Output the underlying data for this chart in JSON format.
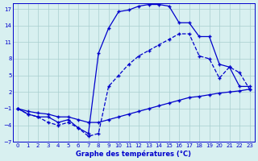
{
  "title": "Graphe des températures (°C)",
  "background_color": "#d8f0f0",
  "grid_color": "#a8cece",
  "line_color": "#0000cc",
  "xlim": [
    -0.5,
    23.5
  ],
  "ylim": [
    -7,
    18
  ],
  "yticks": [
    -7,
    -4,
    -1,
    2,
    5,
    8,
    11,
    14,
    17
  ],
  "xticks": [
    0,
    1,
    2,
    3,
    4,
    5,
    6,
    7,
    8,
    9,
    10,
    11,
    12,
    13,
    14,
    15,
    16,
    17,
    18,
    19,
    20,
    21,
    22,
    23
  ],
  "curve_top": {
    "x": [
      0,
      1,
      2,
      3,
      4,
      5,
      6,
      7,
      8,
      9,
      10,
      11,
      12,
      13,
      14,
      15,
      16,
      17,
      18,
      19,
      20,
      21,
      22,
      23
    ],
    "y": [
      -1.0,
      -2.0,
      -2.5,
      -2.5,
      -3.5,
      -3.0,
      -4.5,
      -5.5,
      9.0,
      13.5,
      16.5,
      16.8,
      17.5,
      17.8,
      17.8,
      17.5,
      14.5,
      14.5,
      12.0,
      12.0,
      7.0,
      6.5,
      3.0,
      3.0
    ]
  },
  "curve_mid": {
    "x": [
      0,
      1,
      2,
      3,
      4,
      5,
      6,
      7,
      8,
      9,
      10,
      11,
      12,
      13,
      14,
      15,
      16,
      17,
      18,
      19,
      20,
      21,
      22,
      23
    ],
    "y": [
      -1.0,
      -1.5,
      -1.8,
      -2.0,
      -2.5,
      -2.5,
      -3.0,
      -3.5,
      -3.5,
      -3.0,
      -2.5,
      -2.0,
      -1.5,
      -1.0,
      -0.5,
      0.0,
      0.5,
      1.0,
      1.2,
      1.5,
      1.8,
      2.0,
      2.2,
      2.5
    ]
  },
  "curve_bot": {
    "x": [
      0,
      1,
      2,
      3,
      4,
      5,
      6,
      7,
      8,
      9,
      10,
      11,
      12,
      13,
      14,
      15,
      16,
      17,
      18,
      19,
      20,
      21,
      22,
      23
    ],
    "y": [
      -1.0,
      -2.0,
      -2.5,
      -3.5,
      -4.0,
      -3.5,
      -4.5,
      -6.0,
      -5.5,
      3.0,
      5.0,
      7.0,
      8.5,
      9.5,
      10.5,
      11.5,
      12.5,
      12.5,
      8.5,
      8.0,
      4.5,
      6.5,
      5.5,
      2.5
    ]
  }
}
